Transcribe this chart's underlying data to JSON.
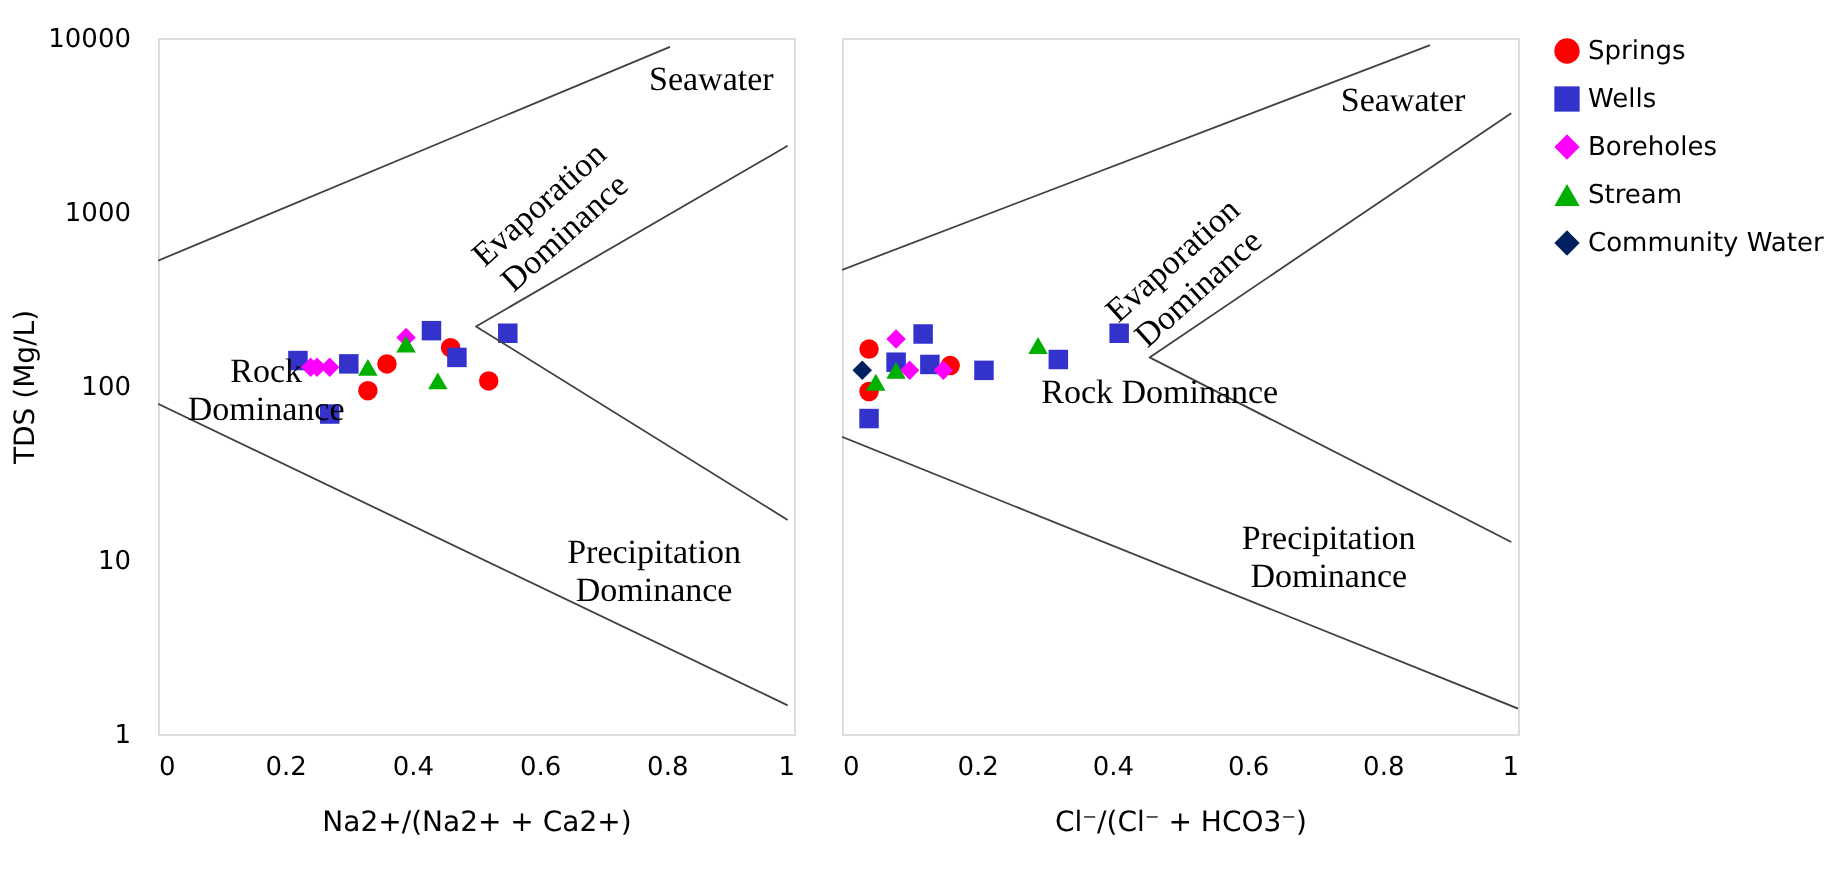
{
  "chart_data": [
    {
      "type": "scatter",
      "xlabel": "Na2+/(Na2+ + Ca2+)",
      "ylabel": "TDS (Mg/L)",
      "log": "y",
      "grid": false,
      "legend": false,
      "xlim": [
        0,
        1
      ],
      "xticks": [
        0,
        0.2,
        0.4,
        0.6,
        0.8,
        1
      ],
      "ylim": [
        1,
        10000
      ],
      "yticks": [
        1,
        10,
        100,
        1000,
        10000
      ],
      "series": [
        {
          "color": "#ff0000",
          "marker": "circle",
          "x": [
            0.33,
            0.36,
            0.46,
            0.52
          ],
          "values": [
            94,
            134,
            166,
            107
          ]
        },
        {
          "color": "#3333cc",
          "marker": "square",
          "x": [
            0.22,
            0.27,
            0.3,
            0.43,
            0.47,
            0.55
          ],
          "values": [
            140,
            69,
            134,
            208,
            146,
            201
          ]
        },
        {
          "color": "#ff00ff",
          "marker": "diamond",
          "x": [
            0.24,
            0.25,
            0.27,
            0.39
          ],
          "values": [
            128,
            128,
            128,
            190
          ]
        },
        {
          "color": "#00b000",
          "marker": "triangle",
          "x": [
            0.33,
            0.39,
            0.44
          ],
          "values": [
            128,
            174,
            107
          ]
        },
        {
          "type": "line",
          "color": "#404040",
          "x": [
            0,
            0.805
          ],
          "values": [
            525,
            8900
          ]
        },
        {
          "type": "line",
          "color": "#404040",
          "x": [
            0.99,
            0.5,
            0.99
          ],
          "values": [
            2400,
            220,
            17
          ]
        },
        {
          "type": "line",
          "color": "#404040",
          "x": [
            0,
            0.99
          ],
          "values": [
            79,
            1.46
          ]
        }
      ],
      "annotations": [
        "Seawater",
        "Evaporation\nDominance",
        "Rock\nDominance",
        "Precipitation\nDominance"
      ]
    },
    {
      "type": "scatter",
      "xlabel": "Cl⁻/(Cl⁻ + HCO3⁻)",
      "log": "y",
      "grid": false,
      "legend": "right",
      "tick_labels": "x",
      "xlim": [
        0,
        1
      ],
      "xticks": [
        0,
        0.2,
        0.4,
        0.6,
        0.8,
        1
      ],
      "ylim": [
        1,
        10000
      ],
      "yticks": [
        1,
        10,
        100,
        1000,
        10000
      ],
      "series": [
        {
          "name": "Springs",
          "color": "#ff0000",
          "marker": "circle",
          "x": [
            0.04,
            0.04,
            0.16
          ],
          "values": [
            163,
            93,
            131
          ]
        },
        {
          "name": "Wells",
          "color": "#3333cc",
          "marker": "square",
          "x": [
            0.12,
            0.08,
            0.13,
            0.21,
            0.32,
            0.41,
            0.04
          ],
          "values": [
            199,
            137,
            133,
            123,
            142,
            201,
            65
          ]
        },
        {
          "name": "Boreholes",
          "color": "#ff00ff",
          "marker": "diamond",
          "x": [
            0.08,
            0.1,
            0.15
          ],
          "values": [
            186,
            123,
            123
          ]
        },
        {
          "name": "Stream",
          "color": "#00b000",
          "marker": "triangle",
          "x": [
            0.05,
            0.08,
            0.29
          ],
          "values": [
            105,
            123,
            171
          ]
        },
        {
          "name": "Community Water",
          "color": "#002060",
          "marker": "diamond",
          "x": [
            0.03
          ],
          "values": [
            123
          ]
        },
        {
          "type": "line",
          "color": "#404040",
          "x": [
            0,
            0.87
          ],
          "values": [
            465,
            9100
          ]
        },
        {
          "type": "line",
          "color": "#404040",
          "x": [
            0.99,
            0.455,
            0.99
          ],
          "values": [
            3700,
            146,
            12.7
          ]
        },
        {
          "type": "line",
          "color": "#404040",
          "x": [
            0,
            1
          ],
          "values": [
            51,
            1.4
          ]
        }
      ],
      "annotations": [
        "Seawater",
        "Evaporation\nDominance",
        "Rock Dominance",
        "Precipitation\nDominance"
      ]
    }
  ]
}
